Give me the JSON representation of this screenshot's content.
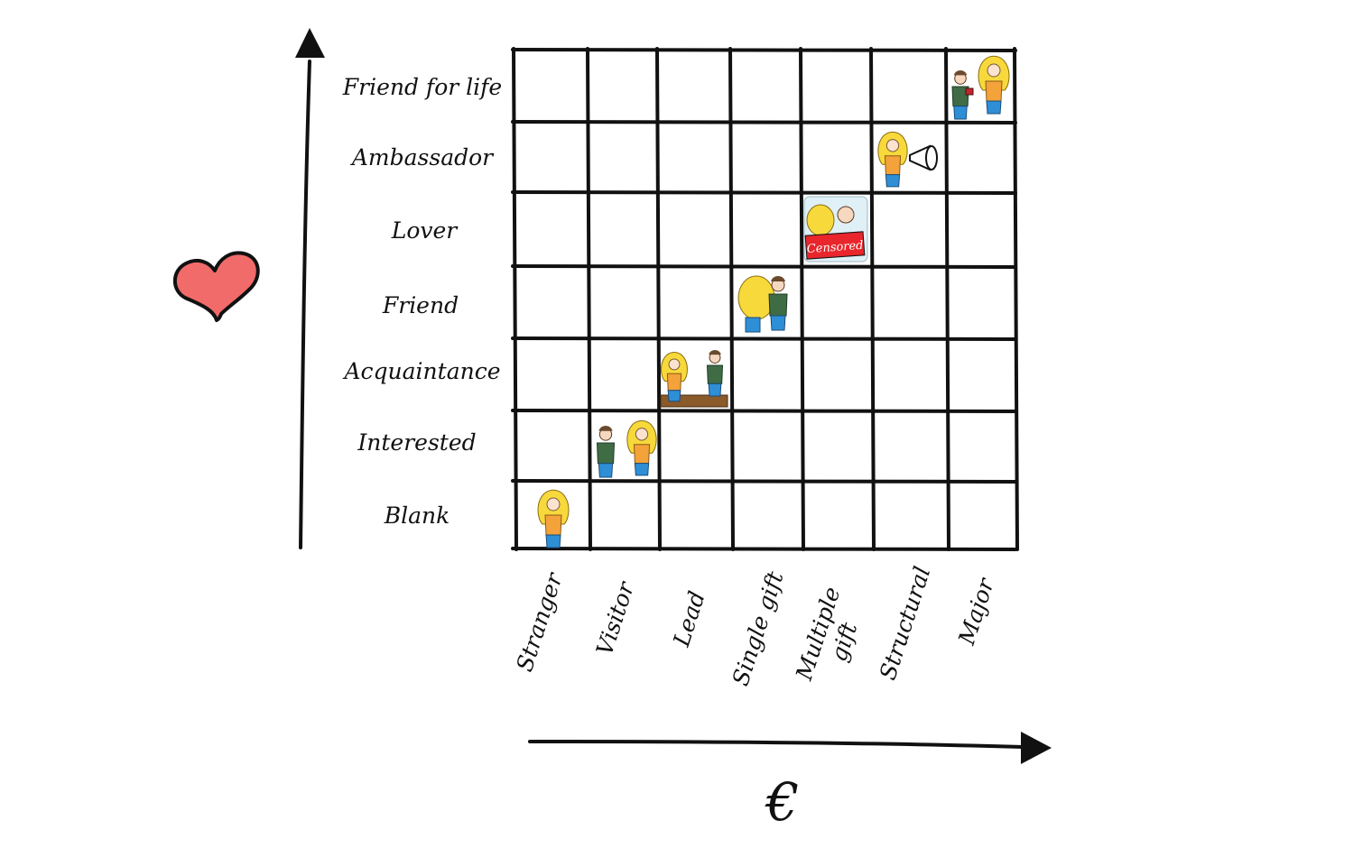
{
  "rows": [
    "Friend for life",
    "Ambassador",
    "Lover",
    "Friend",
    "Acquaintance",
    "Interested",
    "Blank"
  ],
  "columns": [
    "Stranger",
    "Visitor",
    "Lead",
    "Single gift",
    "Multiple gift",
    "Structural",
    "Major"
  ],
  "censored_label": "Censored",
  "euro_symbol": "€",
  "illustrations": [
    {
      "row": "Blank",
      "column": "Stranger",
      "scene": "woman-standing"
    },
    {
      "row": "Interested",
      "column": "Visitor",
      "scene": "man-and-woman-standing"
    },
    {
      "row": "Acquaintance",
      "column": "Lead",
      "scene": "couple-talking-at-table"
    },
    {
      "row": "Friend",
      "column": "Single gift",
      "scene": "couple-embracing"
    },
    {
      "row": "Lover",
      "column": "Multiple gift",
      "scene": "couple-in-bed-censored"
    },
    {
      "row": "Ambassador",
      "column": "Structural",
      "scene": "woman-with-megaphone"
    },
    {
      "row": "Friend for life",
      "column": "Major",
      "scene": "man-proposing-with-ring"
    }
  ],
  "colors": {
    "heart": "#f26b6b",
    "censored": "#e8262c",
    "hair": "#f7d93b",
    "shirt_orange": "#f4a23a",
    "shirt_green": "#3f6b45",
    "jeans": "#2f8fd6"
  }
}
